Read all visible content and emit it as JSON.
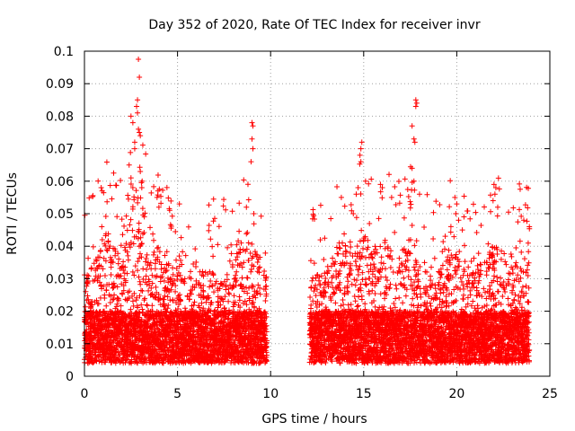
{
  "chart_data": {
    "type": "scatter",
    "title": "Day 352 of 2020, Rate Of TEC Index for receiver invr",
    "xlabel": "GPS time / hours",
    "ylabel": "ROTI / TECUs",
    "xlim": [
      0,
      25
    ],
    "ylim": [
      0,
      0.1
    ],
    "xticks": [
      0,
      5,
      10,
      15,
      20,
      25
    ],
    "xtick_labels": [
      "0",
      "5",
      "10",
      "15",
      "20",
      "25"
    ],
    "yticks": [
      0,
      0.01,
      0.02,
      0.03,
      0.04,
      0.05,
      0.06,
      0.07,
      0.08,
      0.09,
      0.1
    ],
    "ytick_labels": [
      "0",
      "0.01",
      "0.02",
      "0.03",
      "0.04",
      "0.05",
      "0.06",
      "0.07",
      "0.08",
      "0.09",
      "0.1"
    ],
    "grid": true,
    "marker": "plus",
    "marker_color": "#ff0000",
    "data_gap_hours": [
      9.8,
      12.1
    ],
    "series": [
      {
        "name": "ROTI",
        "highlights": [
          [
            0.9,
            0.058
          ],
          [
            0.95,
            0.057
          ],
          [
            2.5,
            0.08
          ],
          [
            2.6,
            0.078
          ],
          [
            2.9,
            0.0975
          ],
          [
            2.95,
            0.092
          ],
          [
            2.85,
            0.085
          ],
          [
            2.8,
            0.083
          ],
          [
            2.85,
            0.081
          ],
          [
            2.9,
            0.076
          ],
          [
            2.95,
            0.075
          ],
          [
            3.0,
            0.074
          ],
          [
            2.7,
            0.072
          ],
          [
            2.7,
            0.07
          ],
          [
            2.4,
            0.065
          ],
          [
            2.5,
            0.061
          ],
          [
            2.6,
            0.058
          ],
          [
            3.0,
            0.063
          ],
          [
            3.1,
            0.06
          ],
          [
            3.95,
            0.057
          ],
          [
            3.9,
            0.055
          ],
          [
            5.1,
            0.053
          ],
          [
            4.0,
            0.052
          ],
          [
            9.0,
            0.078
          ],
          [
            9.05,
            0.077
          ],
          [
            9.0,
            0.073
          ],
          [
            9.05,
            0.07
          ],
          [
            8.95,
            0.066
          ],
          [
            8.7,
            0.052
          ],
          [
            9.1,
            0.05
          ],
          [
            14.6,
            0.056
          ],
          [
            14.9,
            0.072
          ],
          [
            14.85,
            0.07
          ],
          [
            14.8,
            0.068
          ],
          [
            14.85,
            0.066
          ],
          [
            15.1,
            0.06
          ],
          [
            14.7,
            0.058
          ],
          [
            15.9,
            0.059
          ],
          [
            16.0,
            0.058
          ],
          [
            13.8,
            0.055
          ],
          [
            17.8,
            0.085
          ],
          [
            17.85,
            0.084
          ],
          [
            17.8,
            0.083
          ],
          [
            17.6,
            0.077
          ],
          [
            17.7,
            0.073
          ],
          [
            17.75,
            0.072
          ],
          [
            17.6,
            0.064
          ],
          [
            17.7,
            0.06
          ],
          [
            18.0,
            0.056
          ],
          [
            16.5,
            0.055
          ],
          [
            19.9,
            0.055
          ],
          [
            20.0,
            0.053
          ],
          [
            19.95,
            0.05
          ],
          [
            20.1,
            0.048
          ],
          [
            22.0,
            0.059
          ],
          [
            22.1,
            0.058
          ],
          [
            22.05,
            0.056
          ],
          [
            21.95,
            0.054
          ],
          [
            22.2,
            0.052
          ],
          [
            21.5,
            0.035
          ],
          [
            21.6,
            0.035
          ],
          [
            23.6,
            0.048
          ],
          [
            23.9,
            0.046
          ],
          [
            20.3,
            0.045
          ]
        ]
      }
    ]
  }
}
